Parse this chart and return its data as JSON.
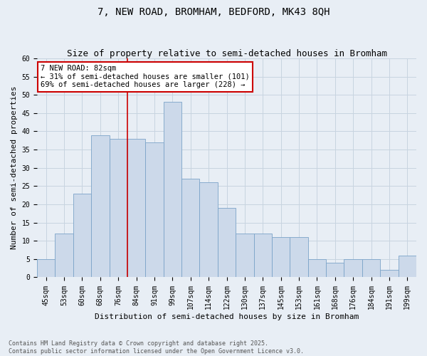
{
  "title": "7, NEW ROAD, BROMHAM, BEDFORD, MK43 8QH",
  "subtitle": "Size of property relative to semi-detached houses in Bromham",
  "xlabel": "Distribution of semi-detached houses by size in Bromham",
  "ylabel": "Number of semi-detached properties",
  "categories": [
    "45sqm",
    "53sqm",
    "60sqm",
    "68sqm",
    "76sqm",
    "84sqm",
    "91sqm",
    "99sqm",
    "107sqm",
    "114sqm",
    "122sqm",
    "130sqm",
    "137sqm",
    "145sqm",
    "153sqm",
    "161sqm",
    "168sqm",
    "176sqm",
    "184sqm",
    "191sqm",
    "199sqm"
  ],
  "values": [
    5,
    12,
    23,
    39,
    38,
    38,
    37,
    48,
    27,
    26,
    19,
    12,
    12,
    11,
    11,
    5,
    4,
    5,
    5,
    2,
    6
  ],
  "bar_color": "#ccd9ea",
  "bar_edge_color": "#7ba3c8",
  "grid_color": "#c8d4e0",
  "background_color": "#e8eef5",
  "annotation_line_color": "#cc0000",
  "annotation_text_line1": "7 NEW ROAD: 82sqm",
  "annotation_text_line2": "← 31% of semi-detached houses are smaller (101)",
  "annotation_text_line3": "69% of semi-detached houses are larger (228) →",
  "annotation_box_color": "#cc0000",
  "ylim": [
    0,
    60
  ],
  "yticks": [
    0,
    5,
    10,
    15,
    20,
    25,
    30,
    35,
    40,
    45,
    50,
    55,
    60
  ],
  "red_line_bar_index": 5,
  "footer_line1": "Contains HM Land Registry data © Crown copyright and database right 2025.",
  "footer_line2": "Contains public sector information licensed under the Open Government Licence v3.0.",
  "title_fontsize": 10,
  "subtitle_fontsize": 9,
  "axis_label_fontsize": 8,
  "tick_fontsize": 7,
  "annotation_fontsize": 7.5,
  "footer_fontsize": 6
}
